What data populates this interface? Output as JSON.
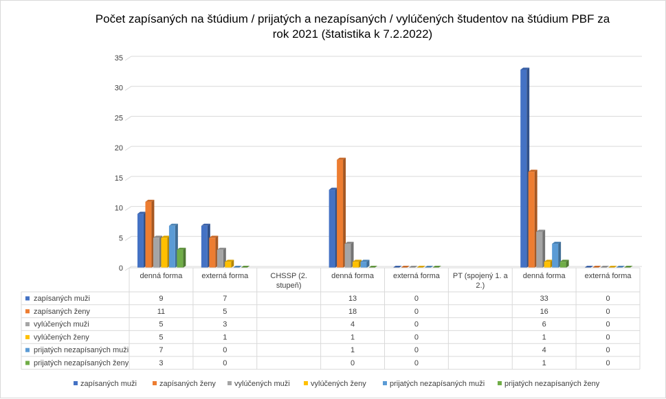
{
  "chart_data": {
    "type": "bar",
    "title_lines": [
      "Počet zapísaných na štúdium / prijatých a nezapísaných / vylúčených študentov na štúdium PBF za",
      "rok 2021 (štatistika k 7.2.2022)"
    ],
    "categories": [
      [
        "denná forma"
      ],
      [
        "externá forma"
      ],
      [
        "CHSSP (2.",
        "stupeň)"
      ],
      [
        "denná forma"
      ],
      [
        "externá forma"
      ],
      [
        "PT (spojený 1. a",
        "2.)"
      ],
      [
        "denná forma"
      ],
      [
        "externá forma"
      ]
    ],
    "ylim": [
      0,
      35
    ],
    "yticks": [
      0,
      5,
      10,
      15,
      20,
      25,
      30,
      35
    ],
    "grid": true,
    "legend_position": "bottom",
    "data_table": true,
    "series": [
      {
        "name": "zapísaných muži",
        "color": "#4472C4",
        "values": [
          9,
          7,
          null,
          13,
          0,
          null,
          33,
          0
        ]
      },
      {
        "name": "zapísaných ženy",
        "color": "#ED7D31",
        "values": [
          11,
          5,
          null,
          18,
          0,
          null,
          16,
          0
        ]
      },
      {
        "name": "vylúčených muži",
        "color": "#A5A5A5",
        "values": [
          5,
          3,
          null,
          4,
          0,
          null,
          6,
          0
        ]
      },
      {
        "name": "vylúčených ženy",
        "color": "#FFC000",
        "values": [
          5,
          1,
          null,
          1,
          0,
          null,
          1,
          0
        ]
      },
      {
        "name": "prijatých nezapísaných muži",
        "color": "#5B9BD5",
        "values": [
          7,
          0,
          null,
          1,
          0,
          null,
          4,
          0
        ]
      },
      {
        "name": "prijatých nezapísaných ženy",
        "color": "#70AD47",
        "values": [
          3,
          0,
          null,
          0,
          0,
          null,
          1,
          0
        ]
      }
    ]
  }
}
